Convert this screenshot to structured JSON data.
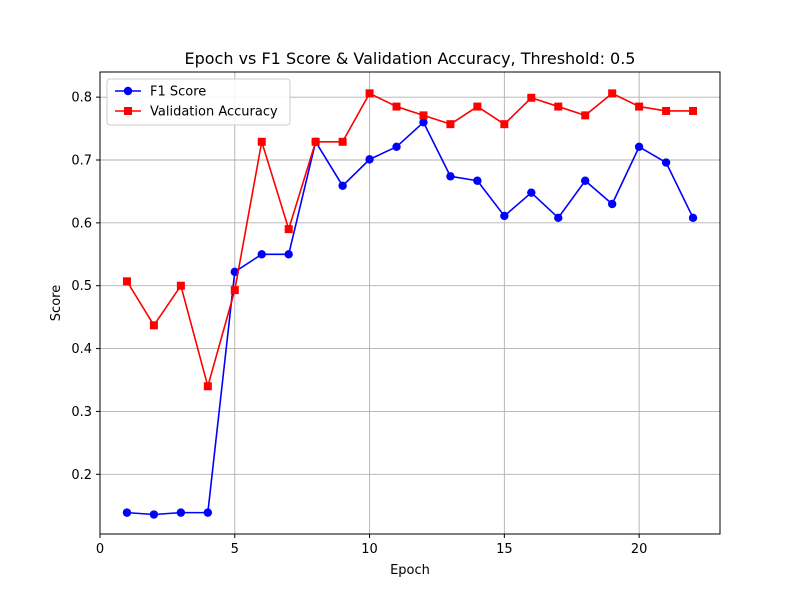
{
  "chart_data": {
    "type": "line",
    "title": "Epoch vs F1 Score & Validation Accuracy, Threshold: 0.5",
    "xlabel": "Epoch",
    "ylabel": "Score",
    "xlim": [
      0,
      23
    ],
    "ylim": [
      0.105,
      0.84
    ],
    "xticks": [
      0,
      5,
      10,
      15,
      20
    ],
    "yticks": [
      0.2,
      0.3,
      0.4,
      0.5,
      0.6,
      0.7,
      0.8
    ],
    "grid": true,
    "legend_position": "top-left",
    "x": [
      1,
      2,
      3,
      4,
      5,
      6,
      7,
      8,
      9,
      10,
      11,
      12,
      13,
      14,
      15,
      16,
      17,
      18,
      19,
      20,
      21,
      22
    ],
    "series": [
      {
        "name": "F1 Score",
        "color": "#0000ff",
        "marker": "circle",
        "values": [
          0.139,
          0.136,
          0.139,
          0.139,
          0.522,
          0.55,
          0.55,
          0.729,
          0.659,
          0.701,
          0.721,
          0.76,
          0.674,
          0.667,
          0.611,
          0.648,
          0.608,
          0.667,
          0.63,
          0.721,
          0.696,
          0.608
        ]
      },
      {
        "name": "Validation Accuracy",
        "color": "#ff0000",
        "marker": "square",
        "values": [
          0.507,
          0.437,
          0.5,
          0.34,
          0.493,
          0.729,
          0.59,
          0.729,
          0.729,
          0.806,
          0.785,
          0.771,
          0.757,
          0.785,
          0.757,
          0.799,
          0.785,
          0.771,
          0.806,
          0.785,
          0.778,
          0.778
        ]
      }
    ]
  }
}
